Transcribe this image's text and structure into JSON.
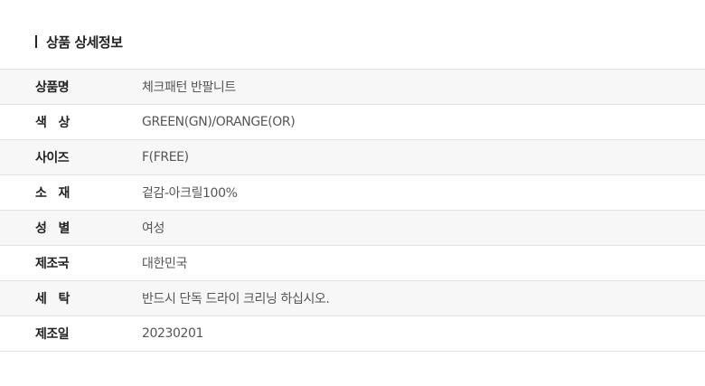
{
  "title": "상품 상세정보",
  "rows": [
    {
      "label": "상품명",
      "value": "체크패턴 반팔니트"
    },
    {
      "label": "색   상",
      "value": "GREEN(GN)/ORANGE(OR)"
    },
    {
      "label": "사이즈",
      "value": "F(FREE)"
    },
    {
      "label": "소   재",
      "value": "겉감-아크릴100%"
    },
    {
      "label": "성   별",
      "value": "여성"
    },
    {
      "label": "제조국",
      "value": "대한민국"
    },
    {
      "label": "세   탁",
      "value": "반드시 단독 드라이 크리닝 하십시오."
    },
    {
      "label": "제조일",
      "value": "20230201"
    }
  ]
}
